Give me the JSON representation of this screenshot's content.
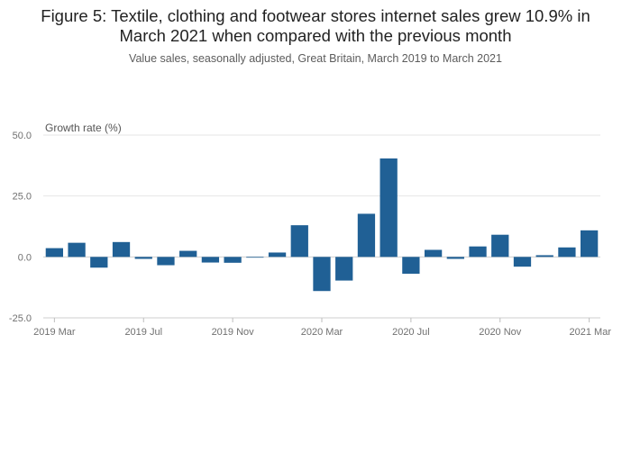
{
  "title": "Figure 5: Textile, clothing and footwear stores internet sales grew 10.9% in March 2021 when compared with the previous month",
  "title_lines": [
    "Figure 5: Textile, clothing and footwear stores internet sales grew 10.9% in",
    "March 2021 when compared with the previous month"
  ],
  "subtitle": "Value sales, seasonally adjusted, Great Britain, March 2019 to March 2021",
  "chart_data": {
    "type": "bar",
    "title": "Figure 5: Textile, clothing and footwear stores internet sales grew 10.9% in March 2021 when compared with the previous month",
    "subtitle": "Value sales, seasonally adjusted, Great Britain, March 2019 to March 2021",
    "ylabel": "Growth rate (%)",
    "xlabel": "",
    "ylim": [
      -25,
      50
    ],
    "yticks": [
      -25,
      0,
      25,
      50
    ],
    "ytick_labels": [
      "-25.0",
      "0.0",
      "25.0",
      "50.0"
    ],
    "xtick_labels": [
      "2019 Mar",
      "2019 Jul",
      "2019 Nov",
      "2020 Mar",
      "2020 Jul",
      "2020 Nov",
      "2021 Mar"
    ],
    "xtick_indices": [
      0,
      4,
      8,
      12,
      16,
      20,
      24
    ],
    "categories": [
      "2019 Mar",
      "2019 Apr",
      "2019 May",
      "2019 Jun",
      "2019 Jul",
      "2019 Aug",
      "2019 Sep",
      "2019 Oct",
      "2019 Nov",
      "2019 Dec",
      "2020 Jan",
      "2020 Feb",
      "2020 Mar",
      "2020 Apr",
      "2020 May",
      "2020 Jun",
      "2020 Jul",
      "2020 Aug",
      "2020 Sep",
      "2020 Oct",
      "2020 Nov",
      "2020 Dec",
      "2021 Jan",
      "2021 Feb",
      "2021 Mar"
    ],
    "values": [
      3.6,
      5.8,
      -4.4,
      6.1,
      -0.8,
      -3.4,
      2.5,
      -2.3,
      -2.4,
      -0.3,
      1.8,
      13.0,
      -14.0,
      -9.7,
      17.7,
      40.4,
      -6.9,
      2.9,
      -0.8,
      4.3,
      9.1,
      -4.0,
      0.7,
      3.9,
      10.9
    ],
    "color": "#206095",
    "grid": true
  }
}
